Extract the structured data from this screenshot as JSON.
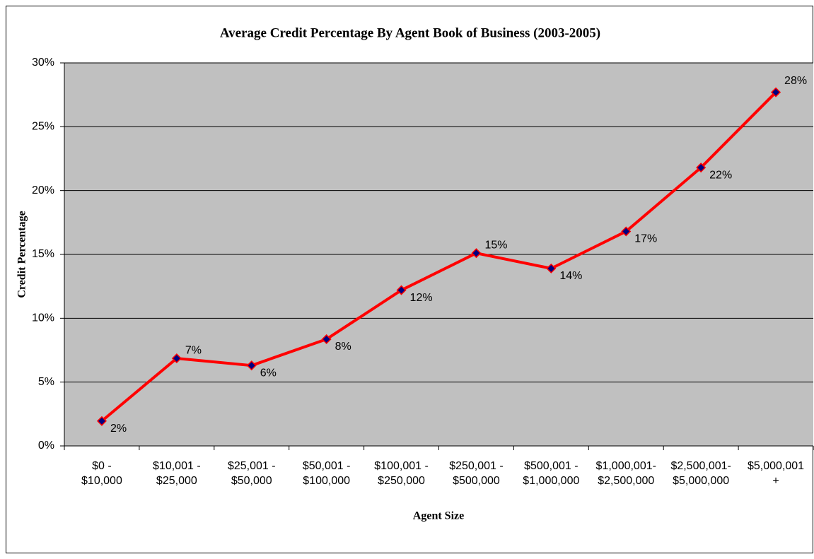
{
  "chart_data": {
    "type": "line",
    "title": "Average Credit Percentage By Agent Book of Business (2003-2005)",
    "x_label": "Agent Size",
    "y_label": "Credit Percentage",
    "categories": [
      [
        "$0 -",
        "$10,000"
      ],
      [
        "$10,001 -",
        "$25,000"
      ],
      [
        "$25,001 -",
        "$50,000"
      ],
      [
        "$50,001 -",
        "$100,000"
      ],
      [
        "$100,001 -",
        "$250,000"
      ],
      [
        "$250,001 -",
        "$500,000"
      ],
      [
        "$500,001 -",
        "$1,000,000"
      ],
      [
        "$1,000,001-",
        "$2,500,000"
      ],
      [
        "$2,500,001-",
        "$5,000,000"
      ],
      [
        "$5,000,001",
        "+"
      ]
    ],
    "series": [
      {
        "name": "Credit Percentage",
        "color": "#ff0000",
        "marker_color": "#000080",
        "values": [
          1.95,
          6.86,
          6.3,
          8.36,
          12.2,
          15.1,
          13.9,
          16.8,
          21.8,
          27.7
        ],
        "value_labels": [
          "2%",
          "7%",
          "6%",
          "8%",
          "12%",
          "15%",
          "14%",
          "17%",
          "22%",
          "28%"
        ]
      }
    ],
    "ylim": [
      0,
      30
    ],
    "yticks": [
      {
        "value": 0,
        "label": "0%"
      },
      {
        "value": 5,
        "label": "5%"
      },
      {
        "value": 10,
        "label": "10%"
      },
      {
        "value": 15,
        "label": "15%"
      },
      {
        "value": 20,
        "label": "20%"
      },
      {
        "value": 25,
        "label": "25%"
      },
      {
        "value": 30,
        "label": "30%"
      }
    ],
    "grid": true,
    "plot_background": "#c0c0c0"
  }
}
